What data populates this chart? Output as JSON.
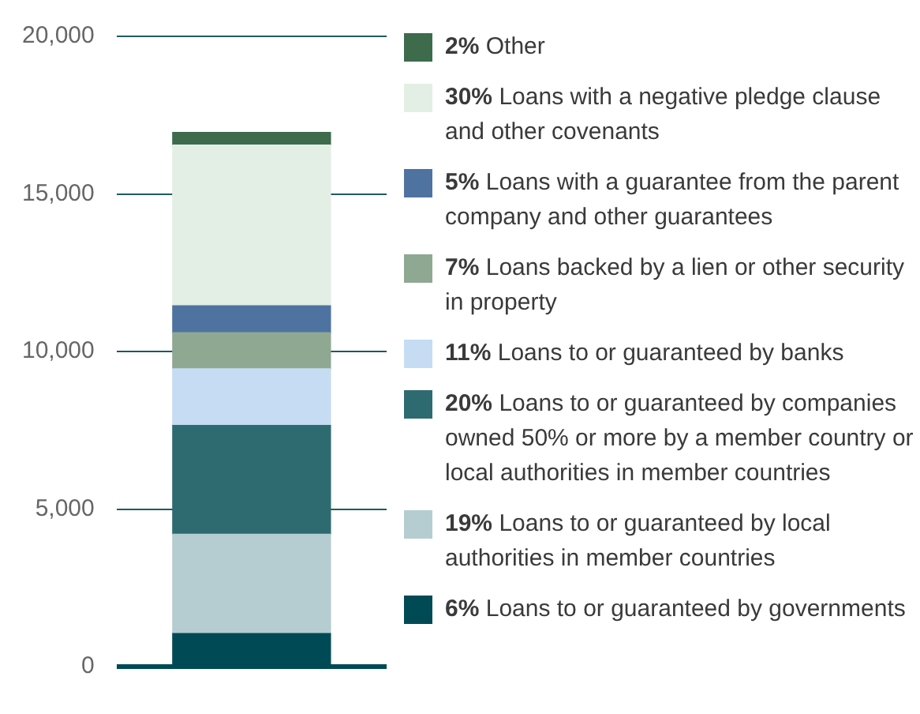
{
  "chart_data": {
    "type": "bar",
    "stacked": true,
    "categories": [
      null
    ],
    "ylim": [
      0,
      20000
    ],
    "yticks": [
      0,
      {
        "value": 5000,
        "label": "5,000"
      },
      {
        "value": 10000,
        "label": "10,000"
      },
      {
        "value": 15000,
        "label": "15,000"
      },
      {
        "value": 20000,
        "label": "20,000"
      }
    ],
    "grid": "y",
    "legend": "right",
    "series": [
      {
        "name": "6% Loans to or guaranteed by governments",
        "color": "#004a55",
        "values": [
          1050
        ]
      },
      {
        "name": "19% Loans to or guaranteed by local authorities in member countries",
        "color": "#b5cdd1",
        "values": [
          3150
        ]
      },
      {
        "name": "20% Loans to or guaranteed by companies owned 50% or more by a member country or local authorities in member countries",
        "color": "#2e6b70",
        "values": [
          3450
        ]
      },
      {
        "name": "11% Loans to or guaranteed by banks",
        "color": "#c5dcf2",
        "values": [
          1800
        ]
      },
      {
        "name": "7% Loans backed by a lien or other security in property",
        "color": "#8fa892",
        "values": [
          1150
        ]
      },
      {
        "name": "5% Loans with a guarantee from the parent company and other guarantees",
        "color": "#4f73a0",
        "values": [
          850
        ]
      },
      {
        "name": "30% Loans with a negative pledge clause and other covenants",
        "color": "#e3efe5",
        "values": [
          5100
        ]
      },
      {
        "name": "2% Other",
        "color": "#3d6b4c",
        "values": [
          400
        ]
      }
    ]
  }
}
